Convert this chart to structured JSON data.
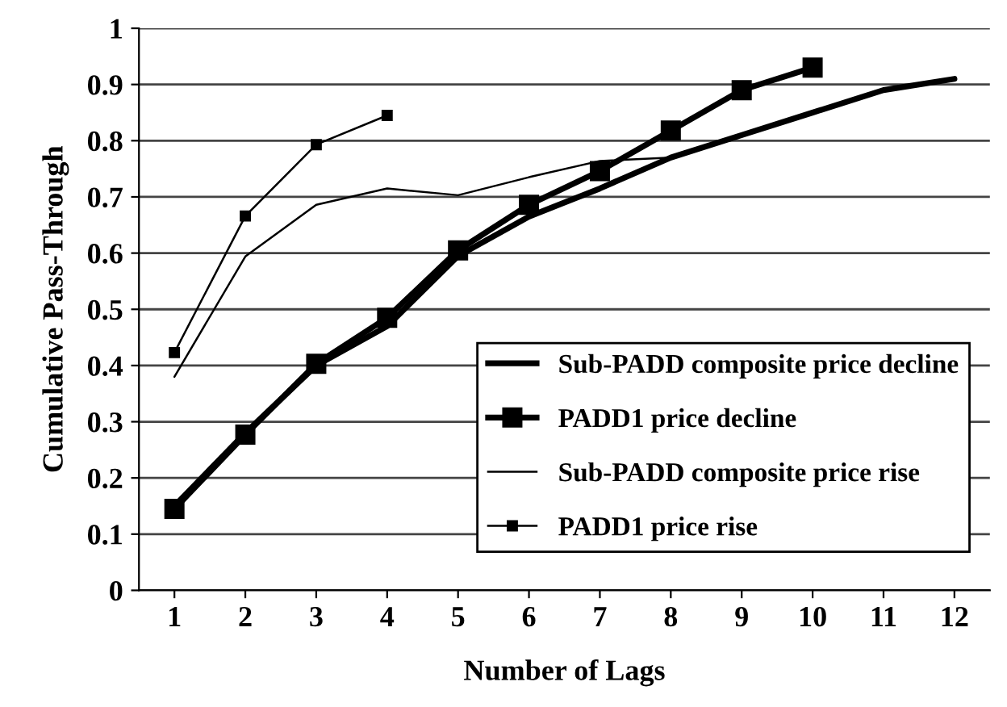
{
  "chart_data": {
    "type": "line",
    "xlabel": "Number of Lags",
    "ylabel": "Cumulative Pass-Through",
    "categories": [
      "1",
      "2",
      "3",
      "4",
      "5",
      "6",
      "7",
      "8",
      "9",
      "10",
      "11",
      "12"
    ],
    "series": [
      {
        "name": "Sub-PADD composite price decline",
        "color": "#000000",
        "marker": "none",
        "values": [
          0.15,
          0.28,
          0.4,
          0.47,
          0.595,
          0.665,
          0.715,
          0.77,
          0.81,
          0.85,
          0.89,
          0.91
        ]
      },
      {
        "name": "PADD1 price decline",
        "color": "#000000",
        "marker": "square",
        "values": [
          0.145,
          0.277,
          0.403,
          0.485,
          0.605,
          0.686,
          0.746,
          0.818,
          0.89,
          0.93,
          null,
          null
        ]
      },
      {
        "name": "Sub-PADD composite price rise",
        "color": "#000000",
        "marker": "none",
        "values": [
          0.38,
          0.594,
          0.686,
          0.715,
          0.703,
          0.735,
          0.764,
          0.77,
          null,
          null,
          null,
          null
        ]
      },
      {
        "name": "PADD1 price rise",
        "color": "#000000",
        "marker": "square",
        "values": [
          0.423,
          0.666,
          0.793,
          0.845,
          null,
          null,
          null,
          null,
          null,
          null,
          null,
          null
        ]
      }
    ],
    "ylim": [
      0,
      1
    ],
    "yticks": [
      0,
      0.1,
      0.2,
      0.3,
      0.4,
      0.5,
      0.6,
      0.7,
      0.8,
      0.9,
      1
    ],
    "grid": "y",
    "legend": "bottom right",
    "line_style": "solid"
  }
}
